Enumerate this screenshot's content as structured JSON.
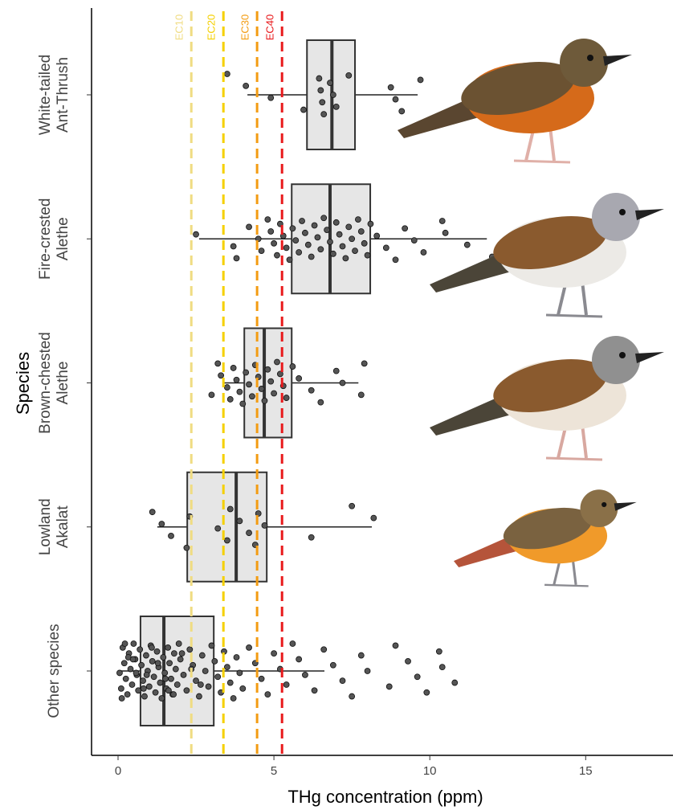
{
  "chart_data": {
    "type": "boxplot",
    "xlabel": "THg concentration (ppm)",
    "ylabel": "Species",
    "xlim": [
      -0.85,
      17.8
    ],
    "xticks": [
      0,
      5,
      10,
      15
    ],
    "categories": [
      [
        "White-tailed",
        "Ant-Thrush"
      ],
      [
        "Fire-crested",
        "Alethe"
      ],
      [
        "Brown-chested",
        "Alethe"
      ],
      [
        "Lowland",
        "Akalat"
      ],
      [
        "Other species"
      ]
    ],
    "box_color": "#e6e6e6",
    "point_color": "#555555",
    "boxes": [
      {
        "whislo": 4.15,
        "q1": 6.06,
        "med": 6.86,
        "q3": 7.6,
        "whishi": 9.61
      },
      {
        "whislo": 2.6,
        "q1": 5.57,
        "med": 6.8,
        "q3": 8.09,
        "whishi": 11.83
      },
      {
        "whislo": 3.38,
        "q1": 4.05,
        "med": 4.69,
        "q3": 5.57,
        "whishi": 7.71
      },
      {
        "whislo": 1.26,
        "q1": 2.22,
        "med": 3.79,
        "q3": 4.77,
        "whishi": 8.14
      },
      {
        "whislo": 0,
        "q1": 0.72,
        "med": 1.47,
        "q3": 3.07,
        "whishi": 6.62
      }
    ],
    "points": [
      [
        3.5,
        4.1,
        4.9,
        5.95,
        6.45,
        6.5,
        6.55,
        6.6,
        6.8,
        6.9,
        7.0,
        7.4,
        8.75,
        8.9,
        9.1,
        9.7
      ],
      [
        2.5,
        3.7,
        3.8,
        4.2,
        4.5,
        4.6,
        4.8,
        4.9,
        5.0,
        5.1,
        5.2,
        5.3,
        5.4,
        5.5,
        5.6,
        5.7,
        5.8,
        5.9,
        6.0,
        6.1,
        6.2,
        6.3,
        6.4,
        6.5,
        6.6,
        6.7,
        6.8,
        6.9,
        7.0,
        7.1,
        7.2,
        7.3,
        7.4,
        7.5,
        7.6,
        7.7,
        7.8,
        7.9,
        8.0,
        8.1,
        8.3,
        8.6,
        8.9,
        9.2,
        9.5,
        9.8,
        10.4,
        10.5,
        11.2,
        12.0
      ],
      [
        3.0,
        3.2,
        3.3,
        3.5,
        3.6,
        3.7,
        3.8,
        3.9,
        4.0,
        4.1,
        4.2,
        4.3,
        4.4,
        4.5,
        4.6,
        4.7,
        4.8,
        4.9,
        5.0,
        5.1,
        5.2,
        5.3,
        5.4,
        5.6,
        5.8,
        6.2,
        6.5,
        7.0,
        7.2,
        7.8,
        7.9
      ],
      [
        1.1,
        1.4,
        1.7,
        2.2,
        2.3,
        3.2,
        3.5,
        3.6,
        3.9,
        4.2,
        4.4,
        4.5,
        4.7,
        6.2,
        7.5,
        8.2
      ],
      [
        0.05,
        0.1,
        0.15,
        0.2,
        0.25,
        0.3,
        0.35,
        0.4,
        0.45,
        0.5,
        0.55,
        0.6,
        0.65,
        0.7,
        0.75,
        0.8,
        0.85,
        0.9,
        0.95,
        1.0,
        1.05,
        1.1,
        1.15,
        1.2,
        1.25,
        1.3,
        1.35,
        1.4,
        1.45,
        1.5,
        1.55,
        1.6,
        1.65,
        1.7,
        1.75,
        1.8,
        1.85,
        1.9,
        1.95,
        2.0,
        2.1,
        2.2,
        2.3,
        2.4,
        2.5,
        2.6,
        2.7,
        2.8,
        2.9,
        3.0,
        3.1,
        3.2,
        3.3,
        3.4,
        3.5,
        3.6,
        3.7,
        3.8,
        3.9,
        4.0,
        4.2,
        4.4,
        4.6,
        4.8,
        5.0,
        5.2,
        5.4,
        5.6,
        5.8,
        6.0,
        6.3,
        6.6,
        6.9,
        7.2,
        7.5,
        7.8,
        8.0,
        8.7,
        8.9,
        9.3,
        9.6,
        9.9,
        10.3,
        10.4,
        10.8,
        0.12,
        0.33,
        0.58,
        0.82,
        1.08,
        1.28,
        1.52,
        1.78,
        2.05,
        2.35,
        2.65,
        0.22,
        0.48,
        0.92,
        1.62
      ]
    ],
    "thresholds": [
      {
        "label": "EC10",
        "value": 2.35,
        "color": "#f0dc82"
      },
      {
        "label": "EC20",
        "value": 3.38,
        "color": "#f5d000"
      },
      {
        "label": "EC30",
        "value": 4.46,
        "color": "#f39c12"
      },
      {
        "label": "EC40",
        "value": 5.26,
        "color": "#e8191b"
      }
    ]
  }
}
